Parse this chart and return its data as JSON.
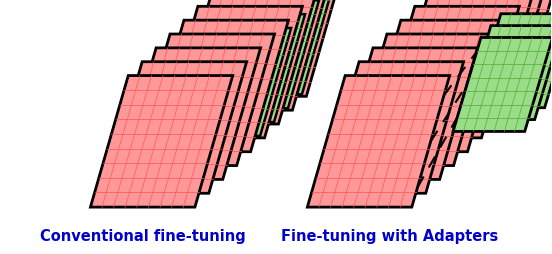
{
  "title_left": "Conventional fine-tuning",
  "title_right": "Fine-tuning with Adapters",
  "title_color": "#0000cc",
  "title_fontsize": 10.5,
  "bg_color": "#ffffff",
  "red_fill": "#ff9999",
  "green_fill": "#99dd88",
  "red_line": "#ff5555",
  "green_line": "#55aa33",
  "black_line": "#000000",
  "num_layers": 9,
  "num_adapter_layers": 3
}
